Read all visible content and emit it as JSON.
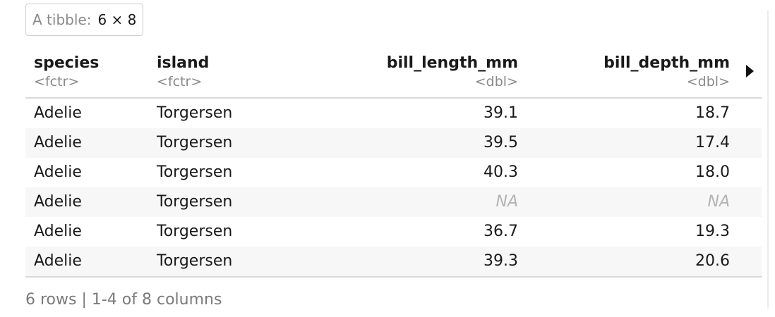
{
  "badge": {
    "label": "A tibble:",
    "dims": "6 × 8"
  },
  "columns": [
    {
      "name": "species",
      "type": "<fctr>"
    },
    {
      "name": "island",
      "type": "<fctr>"
    },
    {
      "name": "bill_length_mm",
      "type": "<dbl>"
    },
    {
      "name": "bill_depth_mm",
      "type": "<dbl>"
    }
  ],
  "rows": [
    [
      "Adelie",
      "Torgersen",
      "39.1",
      "18.7"
    ],
    [
      "Adelie",
      "Torgersen",
      "39.5",
      "17.4"
    ],
    [
      "Adelie",
      "Torgersen",
      "40.3",
      "18.0"
    ],
    [
      "Adelie",
      "Torgersen",
      "NA",
      "NA"
    ],
    [
      "Adelie",
      "Torgersen",
      "36.7",
      "19.3"
    ],
    [
      "Adelie",
      "Torgersen",
      "39.3",
      "20.6"
    ]
  ],
  "footer": "6 rows | 1-4 of 8 columns",
  "icons": {
    "next_columns": "triangle-right-icon"
  },
  "colors": {
    "muted": "#8a8a8a",
    "na": "#b3b3b3",
    "stripe": "#f7f7f7"
  }
}
